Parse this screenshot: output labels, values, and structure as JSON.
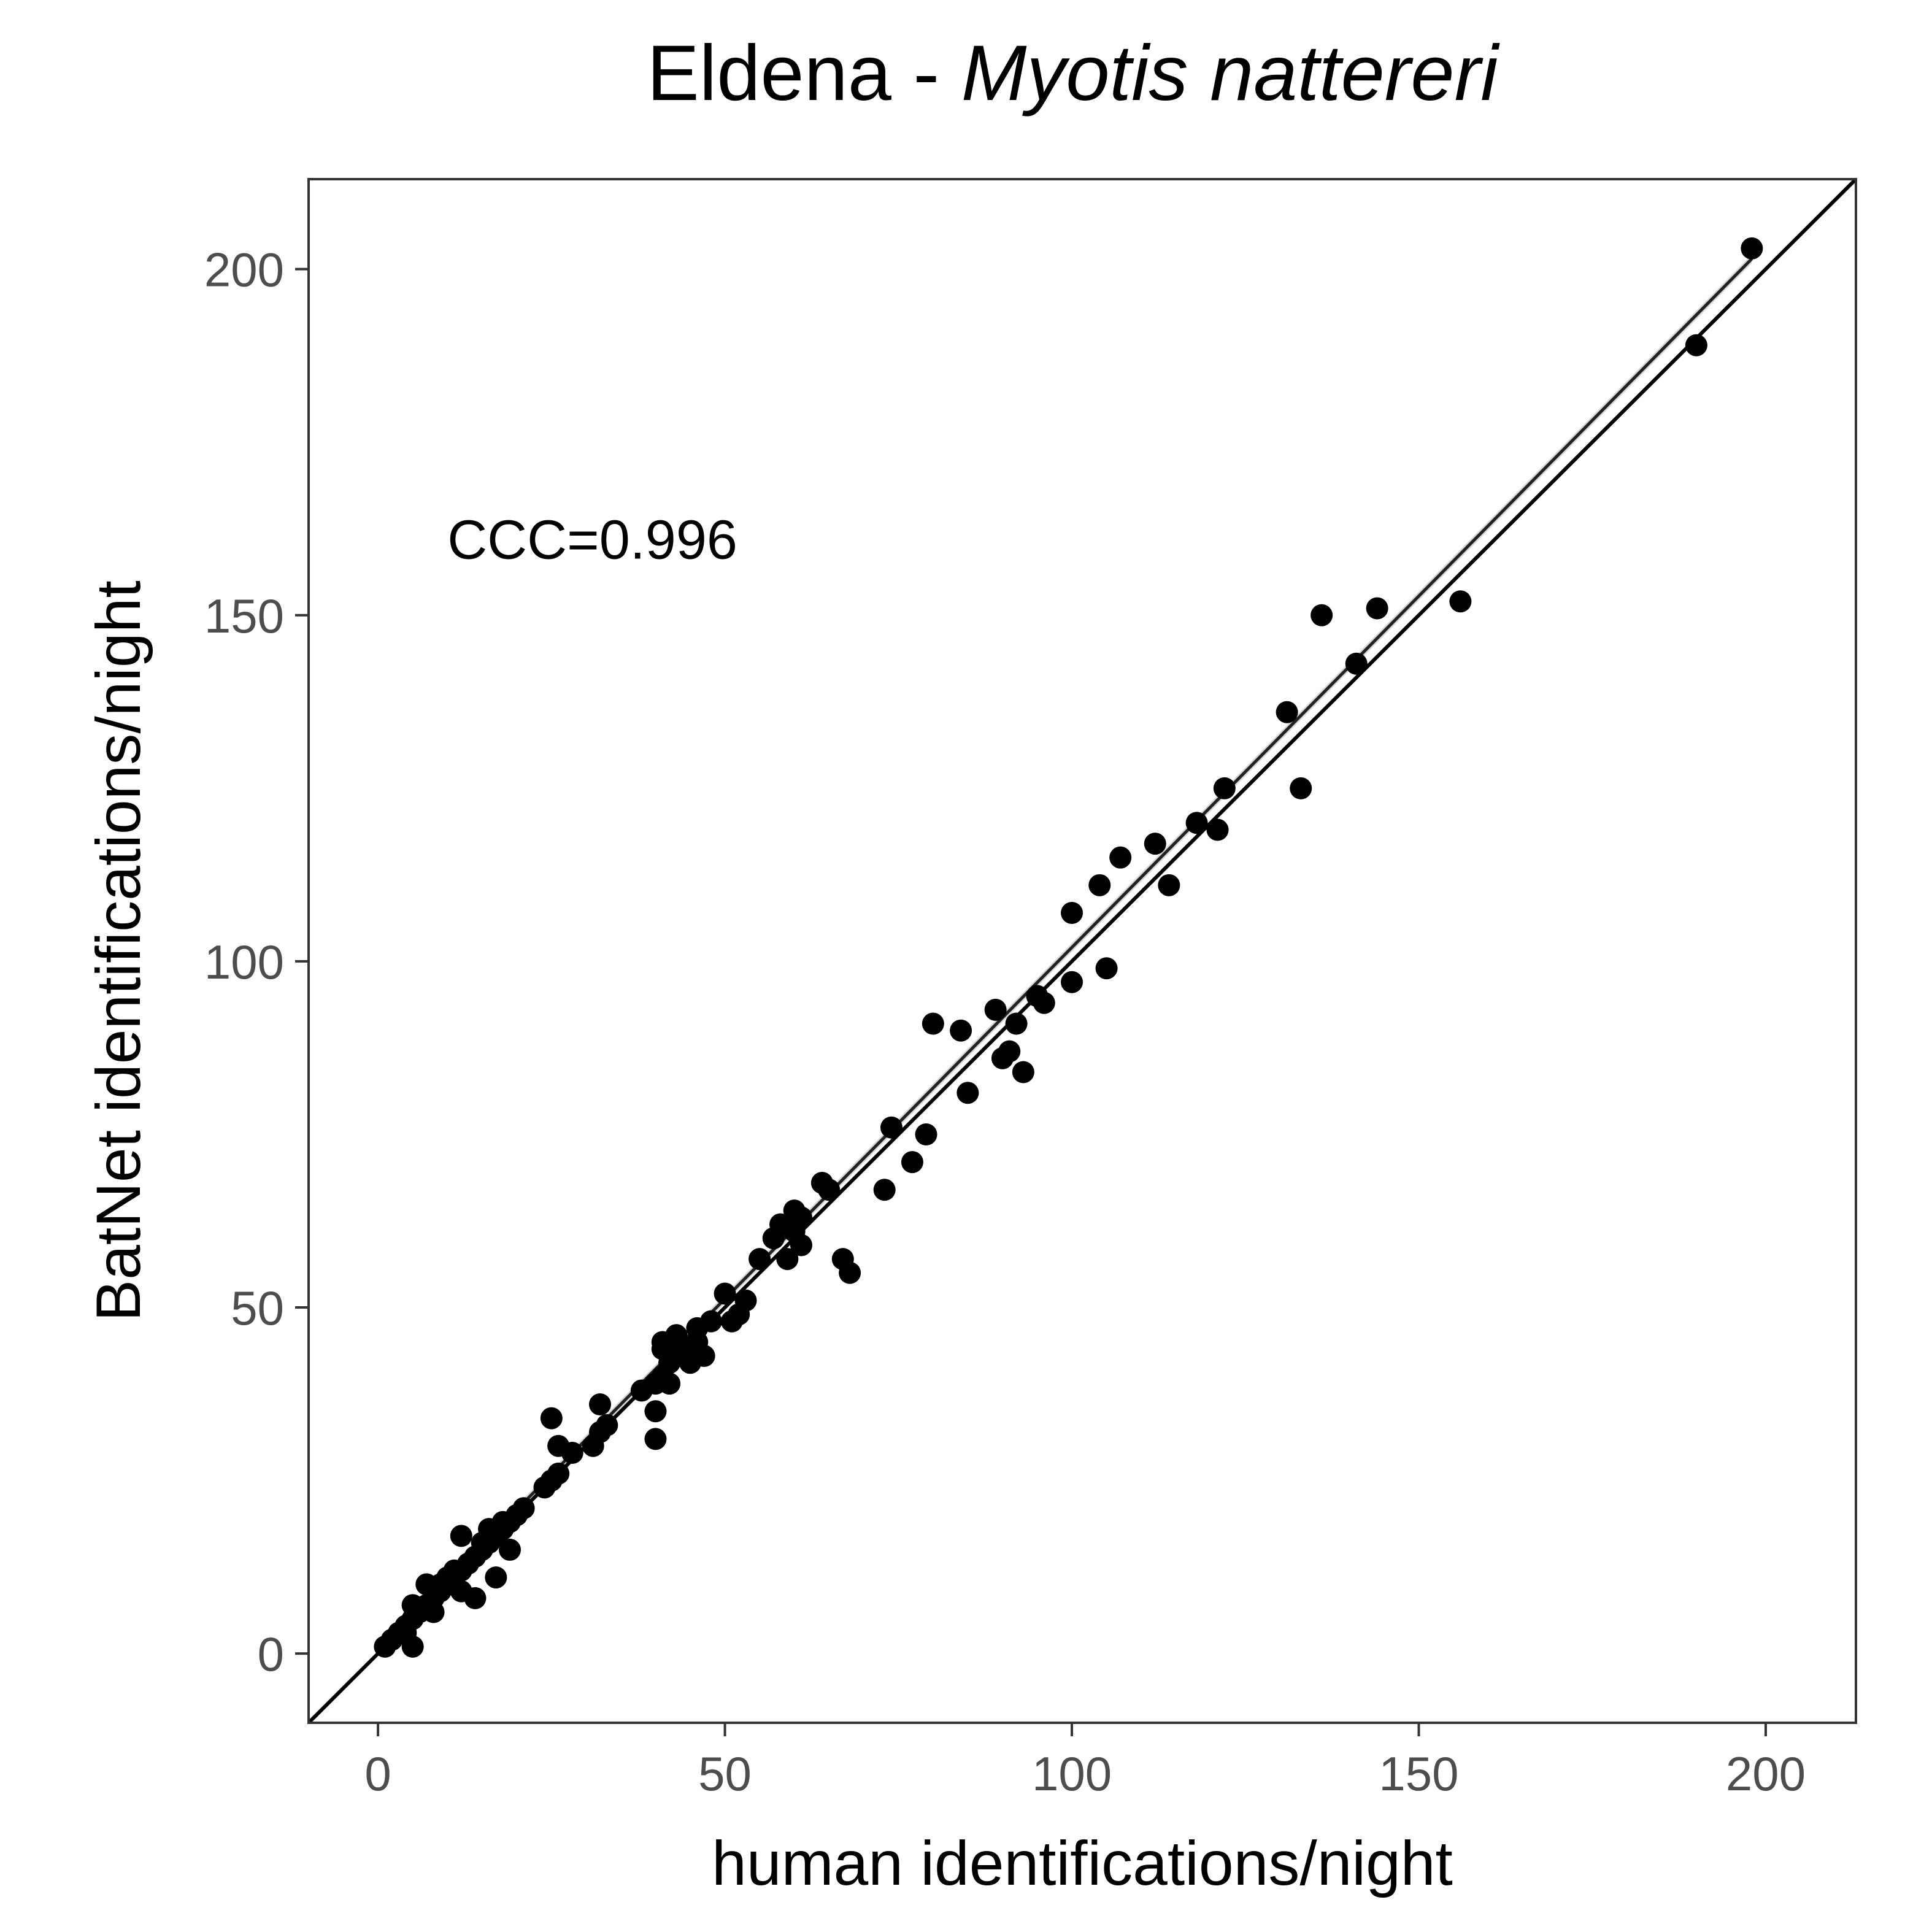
{
  "chart_data": {
    "type": "scatter",
    "title_plain": "Eldena - ",
    "title_italic": "Myotis nattereri",
    "xlabel": "human identifications/night",
    "ylabel": "BatNet identifications/night",
    "xlim": [
      -10,
      213
    ],
    "ylim": [
      -10,
      213
    ],
    "xticks": [
      0,
      50,
      100,
      150,
      200
    ],
    "yticks": [
      0,
      50,
      100,
      150,
      200
    ],
    "grid": false,
    "annotation": {
      "text": "CCC=0.996",
      "x": 10,
      "y": 161
    },
    "reference_line": "y = x",
    "fit_line": {
      "x0": 1,
      "y0": 1.5,
      "x1": 198,
      "y1": 201.5,
      "band_color": "#cccccc"
    },
    "point_color": "#000000",
    "points": [
      [
        1,
        1
      ],
      [
        2,
        2
      ],
      [
        3,
        3
      ],
      [
        4,
        4
      ],
      [
        4,
        3
      ],
      [
        5,
        5
      ],
      [
        5,
        7
      ],
      [
        5,
        1
      ],
      [
        6,
        6
      ],
      [
        7,
        7
      ],
      [
        7,
        10
      ],
      [
        8,
        6
      ],
      [
        8,
        8
      ],
      [
        9,
        9
      ],
      [
        9,
        10
      ],
      [
        10,
        10
      ],
      [
        10,
        11
      ],
      [
        11,
        11
      ],
      [
        11,
        12
      ],
      [
        12,
        12
      ],
      [
        12,
        17
      ],
      [
        12,
        9
      ],
      [
        13,
        13
      ],
      [
        14,
        14
      ],
      [
        14,
        8
      ],
      [
        15,
        15
      ],
      [
        15,
        16
      ],
      [
        16,
        16
      ],
      [
        16,
        18
      ],
      [
        17,
        17
      ],
      [
        17,
        11
      ],
      [
        18,
        18
      ],
      [
        18,
        19
      ],
      [
        19,
        19
      ],
      [
        19,
        15
      ],
      [
        20,
        20
      ],
      [
        21,
        21
      ],
      [
        24,
        24
      ],
      [
        25,
        25
      ],
      [
        25,
        34
      ],
      [
        26,
        26
      ],
      [
        26,
        30
      ],
      [
        28,
        29
      ],
      [
        31,
        30
      ],
      [
        32,
        32
      ],
      [
        32,
        36
      ],
      [
        33,
        33
      ],
      [
        38,
        38
      ],
      [
        40,
        39
      ],
      [
        40,
        35
      ],
      [
        40,
        31
      ],
      [
        41,
        40
      ],
      [
        41,
        44
      ],
      [
        41,
        45
      ],
      [
        42,
        42
      ],
      [
        42,
        39
      ],
      [
        43,
        43
      ],
      [
        43,
        46
      ],
      [
        44,
        44
      ],
      [
        45,
        42
      ],
      [
        46,
        47
      ],
      [
        46,
        45
      ],
      [
        47,
        43
      ],
      [
        48,
        48
      ],
      [
        50,
        52
      ],
      [
        51,
        48
      ],
      [
        52,
        49
      ],
      [
        53,
        51
      ],
      [
        55,
        57
      ],
      [
        57,
        60
      ],
      [
        58,
        62
      ],
      [
        59,
        57
      ],
      [
        60,
        61
      ],
      [
        60,
        64
      ],
      [
        61,
        63
      ],
      [
        61,
        59
      ],
      [
        64,
        68
      ],
      [
        65,
        67
      ],
      [
        67,
        57
      ],
      [
        68,
        55
      ],
      [
        73,
        67
      ],
      [
        74,
        76
      ],
      [
        77,
        71
      ],
      [
        79,
        75
      ],
      [
        80,
        91
      ],
      [
        84,
        90
      ],
      [
        85,
        81
      ],
      [
        89,
        93
      ],
      [
        90,
        86
      ],
      [
        91,
        87
      ],
      [
        92,
        91
      ],
      [
        93,
        84
      ],
      [
        95,
        95
      ],
      [
        96,
        94
      ],
      [
        100,
        107
      ],
      [
        100,
        97
      ],
      [
        104,
        111
      ],
      [
        105,
        99
      ],
      [
        107,
        115
      ],
      [
        112,
        117
      ],
      [
        114,
        111
      ],
      [
        118,
        120
      ],
      [
        121,
        119
      ],
      [
        122,
        125
      ],
      [
        131,
        136
      ],
      [
        133,
        125
      ],
      [
        136,
        150
      ],
      [
        141,
        143
      ],
      [
        144,
        151
      ],
      [
        156,
        152
      ],
      [
        190,
        189
      ],
      [
        198,
        203
      ]
    ]
  }
}
